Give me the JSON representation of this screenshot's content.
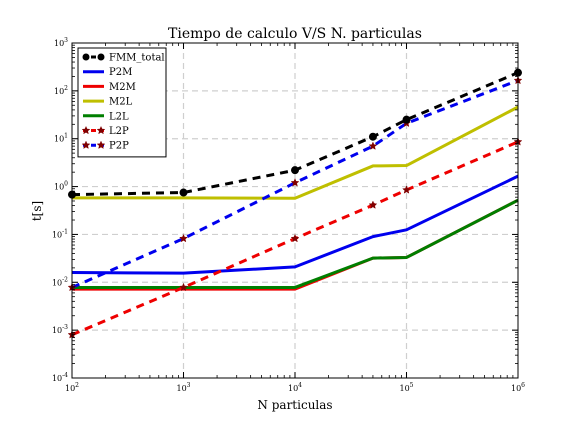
{
  "chart_data": {
    "type": "line",
    "title": "Tiempo de calculo V/S N. particulas",
    "xlabel": "N particulas",
    "ylabel": "t[s]",
    "xscale": "log",
    "yscale": "log",
    "xlim": [
      100,
      1000000
    ],
    "ylim": [
      0.0001,
      1000
    ],
    "xticks": [
      {
        "base": "10",
        "exp": "2"
      },
      {
        "base": "10",
        "exp": "3"
      },
      {
        "base": "10",
        "exp": "4"
      },
      {
        "base": "10",
        "exp": "5"
      },
      {
        "base": "10",
        "exp": "6"
      }
    ],
    "yticks": [
      {
        "base": "10",
        "exp": "-4"
      },
      {
        "base": "10",
        "exp": "-3"
      },
      {
        "base": "10",
        "exp": "-2"
      },
      {
        "base": "10",
        "exp": "-1"
      },
      {
        "base": "10",
        "exp": "0"
      },
      {
        "base": "10",
        "exp": "1"
      },
      {
        "base": "10",
        "exp": "2"
      },
      {
        "base": "10",
        "exp": "3"
      }
    ],
    "grid": true,
    "legend_position": "top-left",
    "x": [
      100,
      1000,
      10000,
      50000,
      100000,
      1000000
    ],
    "series": [
      {
        "name": "FMM_total",
        "color": "#000000",
        "linestyle": "dashed",
        "marker": "circle",
        "values": [
          0.68,
          0.75,
          2.2,
          11,
          25,
          240
        ]
      },
      {
        "name": "P2M",
        "color": "#0000ee",
        "linestyle": "solid",
        "marker": "none",
        "values": [
          0.016,
          0.0155,
          0.021,
          0.09,
          0.125,
          1.65
        ]
      },
      {
        "name": "M2M",
        "color": "#ee0000",
        "linestyle": "solid",
        "marker": "none",
        "values": [
          0.0072,
          0.0072,
          0.0072,
          0.032,
          0.033,
          0.52
        ]
      },
      {
        "name": "M2L",
        "color": "#bfbf00",
        "linestyle": "solid",
        "marker": "none",
        "values": [
          0.58,
          0.58,
          0.57,
          2.7,
          2.75,
          46
        ]
      },
      {
        "name": "L2L",
        "color": "#007f00",
        "linestyle": "solid",
        "marker": "none",
        "values": [
          0.0078,
          0.0078,
          0.0078,
          0.032,
          0.033,
          0.52
        ]
      },
      {
        "name": "L2P",
        "color": "#ee0000",
        "linestyle": "dashed",
        "marker": "star",
        "values": [
          0.0008,
          0.0078,
          0.082,
          0.41,
          0.85,
          8.6
        ]
      },
      {
        "name": "P2P",
        "color": "#0000ee",
        "linestyle": "dashed",
        "marker": "star",
        "values": [
          0.0078,
          0.082,
          1.2,
          7,
          21,
          165
        ]
      }
    ]
  }
}
